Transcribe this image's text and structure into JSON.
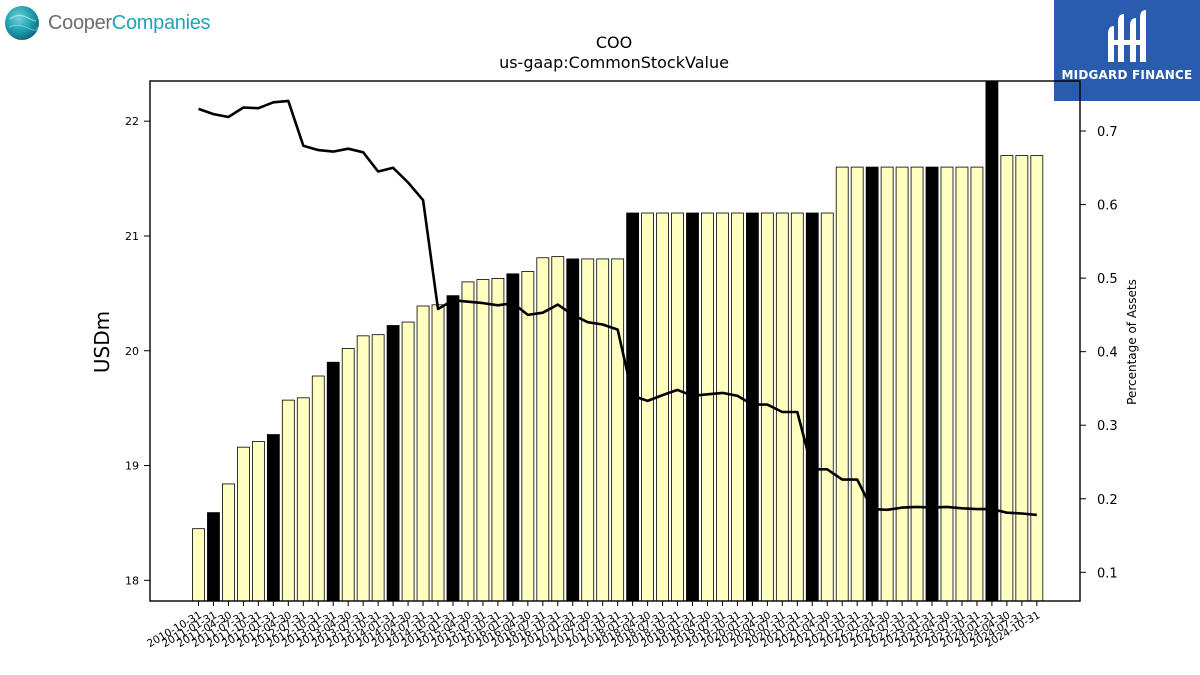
{
  "logos": {
    "left": {
      "word1": "Cooper",
      "word2": "Companies"
    },
    "right": {
      "brand": "MIDGARD FINANCE"
    }
  },
  "colors": {
    "bar_normal": "#ffffc0",
    "bar_highlight": "#000000",
    "bar_edge": "#000000",
    "line": "#000000",
    "brand_blue": "#2a5cad",
    "brand_teal": "#20a4b8"
  },
  "chart_data": {
    "type": "bar",
    "title": "COO",
    "subtitle": "us-gaap:CommonStockValue",
    "ylabel": "USDm",
    "y2label": "Percentage of Assets",
    "ylim": [
      17.82,
      22.35
    ],
    "y2lim": [
      0.061,
      0.768
    ],
    "yticks": [
      18,
      19,
      20,
      21,
      22
    ],
    "y2ticks": [
      0.1,
      0.2,
      0.3,
      0.4,
      0.5,
      0.6,
      0.7
    ],
    "grid": false,
    "categories": [
      "2010-10-31",
      "2011-01-31",
      "2011-04-30",
      "2011-07-31",
      "2011-10-31",
      "2012-01-31",
      "2012-04-30",
      "2012-07-31",
      "2012-10-31",
      "2013-01-31",
      "2013-04-30",
      "2013-07-31",
      "2013-10-31",
      "2014-01-31",
      "2014-04-30",
      "2014-07-31",
      "2014-10-31",
      "2015-01-31",
      "2015-04-30",
      "2015-07-31",
      "2015-10-31",
      "2016-01-31",
      "2016-04-30",
      "2016-07-31",
      "2016-10-31",
      "2017-01-31",
      "2017-04-30",
      "2017-07-31",
      "2017-10-31",
      "2018-01-31",
      "2018-04-30",
      "2018-07-31",
      "2018-10-31",
      "2019-01-31",
      "2019-04-30",
      "2019-07-31",
      "2019-10-31",
      "2020-01-31",
      "2020-04-30",
      "2020-07-31",
      "2020-10-31",
      "2021-01-31",
      "2021-04-30",
      "2021-07-31",
      "2021-10-31",
      "2022-01-31",
      "2022-04-30",
      "2022-07-31",
      "2022-10-31",
      "2023-01-31",
      "2023-04-30",
      "2023-07-31",
      "2023-10-31",
      "2024-01-31",
      "2024-04-30",
      "2024-07-31",
      "2024-10-31"
    ],
    "tick_labels": [
      "2010-10-31",
      "2011-01-31",
      "2011-04-30",
      "2011-07-31",
      "2011-10-31",
      "2012-01-31",
      "2012-04-30",
      "2012-07-31",
      "2012-10-31",
      "2013-01-31",
      "2013-04-30",
      "2013-07-31",
      "2013-10-31",
      "2014-01-31",
      "2014-04-30",
      "2014-07-31",
      "2014-10-31",
      "2015-01-31",
      "2015-04-30",
      "2015-07-31",
      "2015-10-31",
      "2016-01-31",
      "2016-04-30",
      "2016-07-31",
      "2016-10-31",
      "2017-01-31",
      "2017-04-30",
      "2017-07-31",
      "2017-10-31",
      "2018-01-31",
      "2018-04-30",
      "2018-07-31",
      "2018-10-31",
      "2019-01-31",
      "2019-04-30",
      "2019-07-31",
      "2019-10-31",
      "2020-01-31",
      "2020-04-30",
      "2020-07-31",
      "2020-10-31",
      "2021-01-31",
      "2021-04-30",
      "2021-07-31",
      "2021-10-31",
      "2022-01-31",
      "2022-04-30",
      "2022-07-31",
      "2022-10-31",
      "2023-01-31",
      "2023-04-30",
      "2023-07-31",
      "2023-10-31",
      "2024-01-31",
      "2024-04-30",
      "2024-07-31",
      "2024-10-31"
    ],
    "series": [
      {
        "type": "bar",
        "values": [
          18.45,
          18.59,
          18.84,
          19.16,
          19.21,
          19.27,
          19.57,
          19.59,
          19.78,
          19.9,
          20.02,
          20.13,
          20.14,
          20.22,
          20.25,
          20.39,
          20.4,
          20.48,
          20.6,
          20.62,
          20.63,
          20.67,
          20.69,
          20.81,
          20.82,
          20.8,
          20.8,
          20.8,
          20.8,
          21.2,
          21.2,
          21.2,
          21.2,
          21.2,
          21.2,
          21.2,
          21.2,
          21.2,
          21.2,
          21.2,
          21.2,
          21.2,
          21.2,
          21.6,
          21.6,
          21.6,
          21.6,
          21.6,
          21.6,
          21.6,
          21.6,
          21.6,
          21.6,
          22.35,
          21.7,
          21.7,
          21.7
        ],
        "highlight": [
          false,
          true,
          false,
          false,
          false,
          true,
          false,
          false,
          false,
          true,
          false,
          false,
          false,
          true,
          false,
          false,
          false,
          true,
          false,
          false,
          false,
          true,
          false,
          false,
          false,
          true,
          false,
          false,
          false,
          true,
          false,
          false,
          false,
          true,
          false,
          false,
          false,
          true,
          false,
          false,
          false,
          true,
          false,
          false,
          false,
          true,
          false,
          false,
          false,
          true,
          false,
          false,
          false,
          true,
          false,
          false,
          false
        ]
      },
      {
        "type": "line",
        "axis": "right",
        "values": [
          0.73,
          0.723,
          0.719,
          0.732,
          0.731,
          0.739,
          0.741,
          0.68,
          0.674,
          0.672,
          0.676,
          0.671,
          0.645,
          0.65,
          0.63,
          0.606,
          0.458,
          0.47,
          0.468,
          0.466,
          0.463,
          0.466,
          0.45,
          0.453,
          0.464,
          0.45,
          0.44,
          0.437,
          0.43,
          0.34,
          0.333,
          0.341,
          0.348,
          0.34,
          0.342,
          0.344,
          0.34,
          0.328,
          0.328,
          0.318,
          0.318,
          0.24,
          0.24,
          0.226,
          0.226,
          0.186,
          0.185,
          0.188,
          0.189,
          0.188,
          0.189,
          0.187,
          0.186,
          0.186,
          0.181,
          0.18,
          0.178
        ]
      }
    ]
  }
}
